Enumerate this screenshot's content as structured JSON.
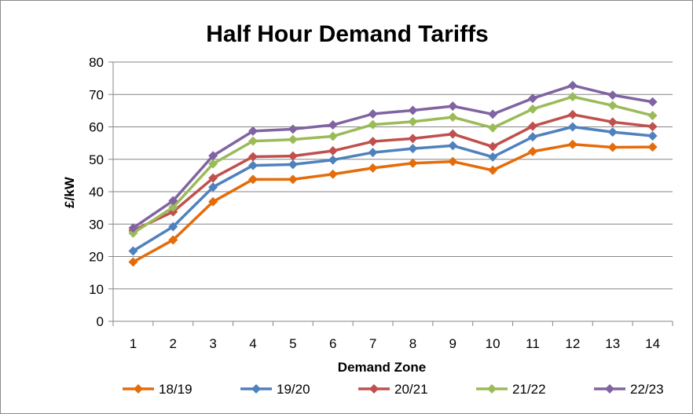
{
  "chart_data": {
    "type": "line",
    "title": "Half Hour Demand Tariffs",
    "xlabel": "Demand Zone",
    "ylabel": "£/kW",
    "categories": [
      "1",
      "2",
      "3",
      "4",
      "5",
      "6",
      "7",
      "8",
      "9",
      "10",
      "11",
      "12",
      "13",
      "14"
    ],
    "ylim": [
      0,
      80
    ],
    "yticks": [
      0,
      10,
      20,
      30,
      40,
      50,
      60,
      70,
      80
    ],
    "grid": true,
    "legend": "bottom",
    "series": [
      {
        "name": "18/19",
        "color": "#E46C0A",
        "values": [
          18.3,
          25.1,
          36.9,
          43.8,
          43.8,
          45.4,
          47.3,
          48.8,
          49.3,
          46.6,
          52.4,
          54.6,
          53.7,
          53.8
        ]
      },
      {
        "name": "19/20",
        "color": "#4F81BD",
        "values": [
          21.7,
          29.2,
          41.4,
          48.1,
          48.4,
          49.8,
          52.1,
          53.3,
          54.2,
          50.7,
          56.9,
          60.0,
          58.4,
          57.2
        ]
      },
      {
        "name": "20/21",
        "color": "#C0504D",
        "values": [
          28.0,
          33.8,
          44.2,
          50.8,
          51.0,
          52.6,
          55.5,
          56.4,
          57.8,
          53.9,
          60.2,
          63.8,
          61.5,
          60.1
        ]
      },
      {
        "name": "21/22",
        "color": "#9BBB59",
        "values": [
          27.2,
          35.2,
          48.6,
          55.6,
          56.1,
          57.1,
          60.7,
          61.6,
          63.0,
          59.7,
          65.5,
          69.3,
          66.6,
          63.5
        ]
      },
      {
        "name": "22/23",
        "color": "#8064A2",
        "values": [
          28.8,
          37.2,
          51.1,
          58.7,
          59.3,
          60.6,
          64.0,
          65.1,
          66.4,
          63.9,
          68.8,
          72.8,
          69.8,
          67.7
        ]
      }
    ]
  }
}
